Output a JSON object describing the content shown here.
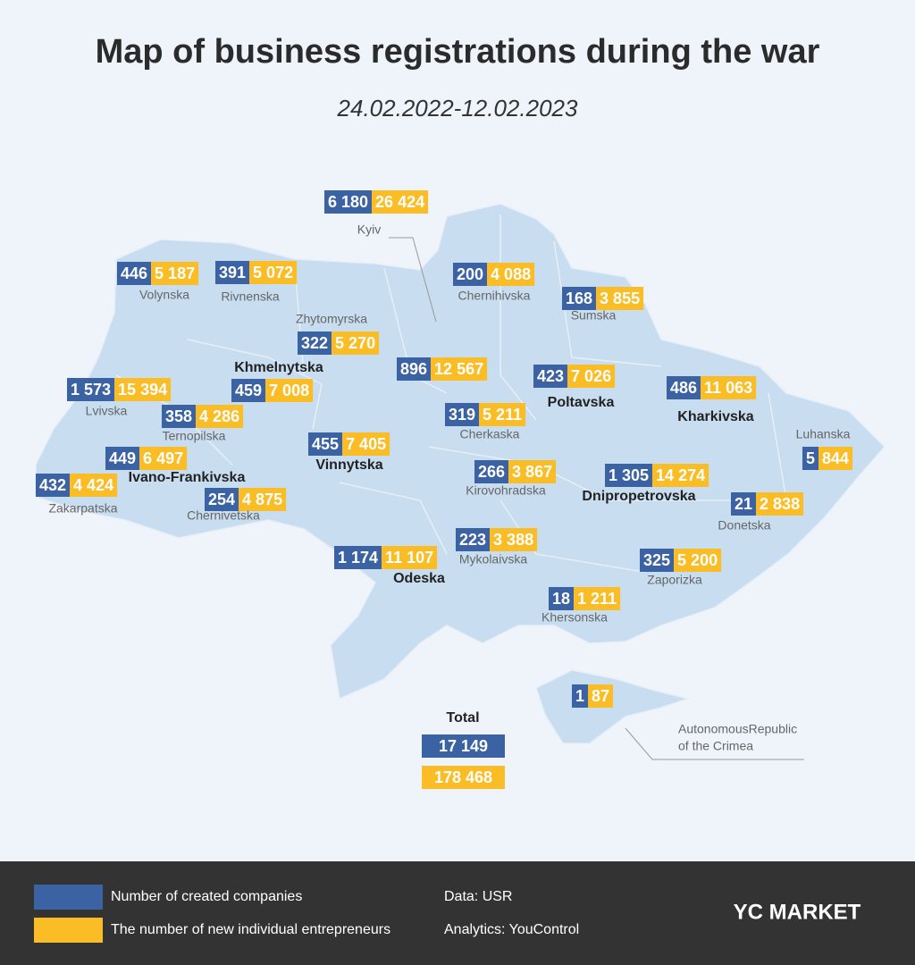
{
  "title": "Map of business registrations during the war",
  "subtitle": "24.02.2022-12.02.2023",
  "regions": [
    {
      "name": "Kyiv",
      "companies": "6 180",
      "entrepreneurs": "26 424"
    },
    {
      "name": "Volynska",
      "companies": "446",
      "entrepreneurs": "5 187"
    },
    {
      "name": "Rivnenska",
      "companies": "391",
      "entrepreneurs": "5 072"
    },
    {
      "name": "Zhytomyrska",
      "companies": "322",
      "entrepreneurs": "5 270"
    },
    {
      "name": "Chernihivska",
      "companies": "200",
      "entrepreneurs": "4 088"
    },
    {
      "name": "Sumska",
      "companies": "168",
      "entrepreneurs": "3 855"
    },
    {
      "name": "Khmelnytska",
      "companies": "459",
      "entrepreneurs": "7 008"
    },
    {
      "companies": "896",
      "entrepreneurs": "12 567"
    },
    {
      "name": "Poltavska",
      "companies": "423",
      "entrepreneurs": "7 026"
    },
    {
      "name": "Kharkivska",
      "companies": "486",
      "entrepreneurs": "11 063"
    },
    {
      "name": "Lvivska",
      "companies": "1 573",
      "entrepreneurs": "15 394"
    },
    {
      "name": "Ternopilska",
      "companies": "358",
      "entrepreneurs": "4 286"
    },
    {
      "name": "Cherkaska",
      "companies": "319",
      "entrepreneurs": "5 211"
    },
    {
      "name": "Vinnytska",
      "companies": "455",
      "entrepreneurs": "7 405"
    },
    {
      "name": "Luhanska",
      "companies": "5",
      "entrepreneurs": "844"
    },
    {
      "name": "Ivano-Frankivska",
      "companies": "449",
      "entrepreneurs": "6 497"
    },
    {
      "name": "Zakarpatska",
      "companies": "432",
      "entrepreneurs": "4 424"
    },
    {
      "name": "Chernivetska",
      "companies": "254",
      "entrepreneurs": "4 875"
    },
    {
      "name": "Kirovohradska",
      "companies": "266",
      "entrepreneurs": "3 867"
    },
    {
      "name": "Dnipropetrovska",
      "companies": "1 305",
      "entrepreneurs": "14 274"
    },
    {
      "name": "Donetska",
      "companies": "21",
      "entrepreneurs": "2 838"
    },
    {
      "name": "Mykolaivska",
      "companies": "223",
      "entrepreneurs": "3 388"
    },
    {
      "name": "Odeska",
      "companies": "1 174",
      "entrepreneurs": "11 107"
    },
    {
      "name": "Zaporizka",
      "companies": "325",
      "entrepreneurs": "5 200"
    },
    {
      "name": "Khersonska",
      "companies": "18",
      "entrepreneurs": "1 211"
    },
    {
      "name": [
        "AutonomousRepublic",
        "of the Crimea"
      ],
      "companies": "1",
      "entrepreneurs": "87"
    }
  ],
  "total": {
    "label": "Total",
    "companies": "17 149",
    "entrepreneurs": "178 468"
  },
  "legend": {
    "companies": "Number of created companies",
    "entrepreneurs": "The number of new individual entrepreneurs"
  },
  "footer": {
    "data": "Data: USR",
    "analytics": "Analytics: YouControl",
    "logo": "YC MARKET"
  }
}
